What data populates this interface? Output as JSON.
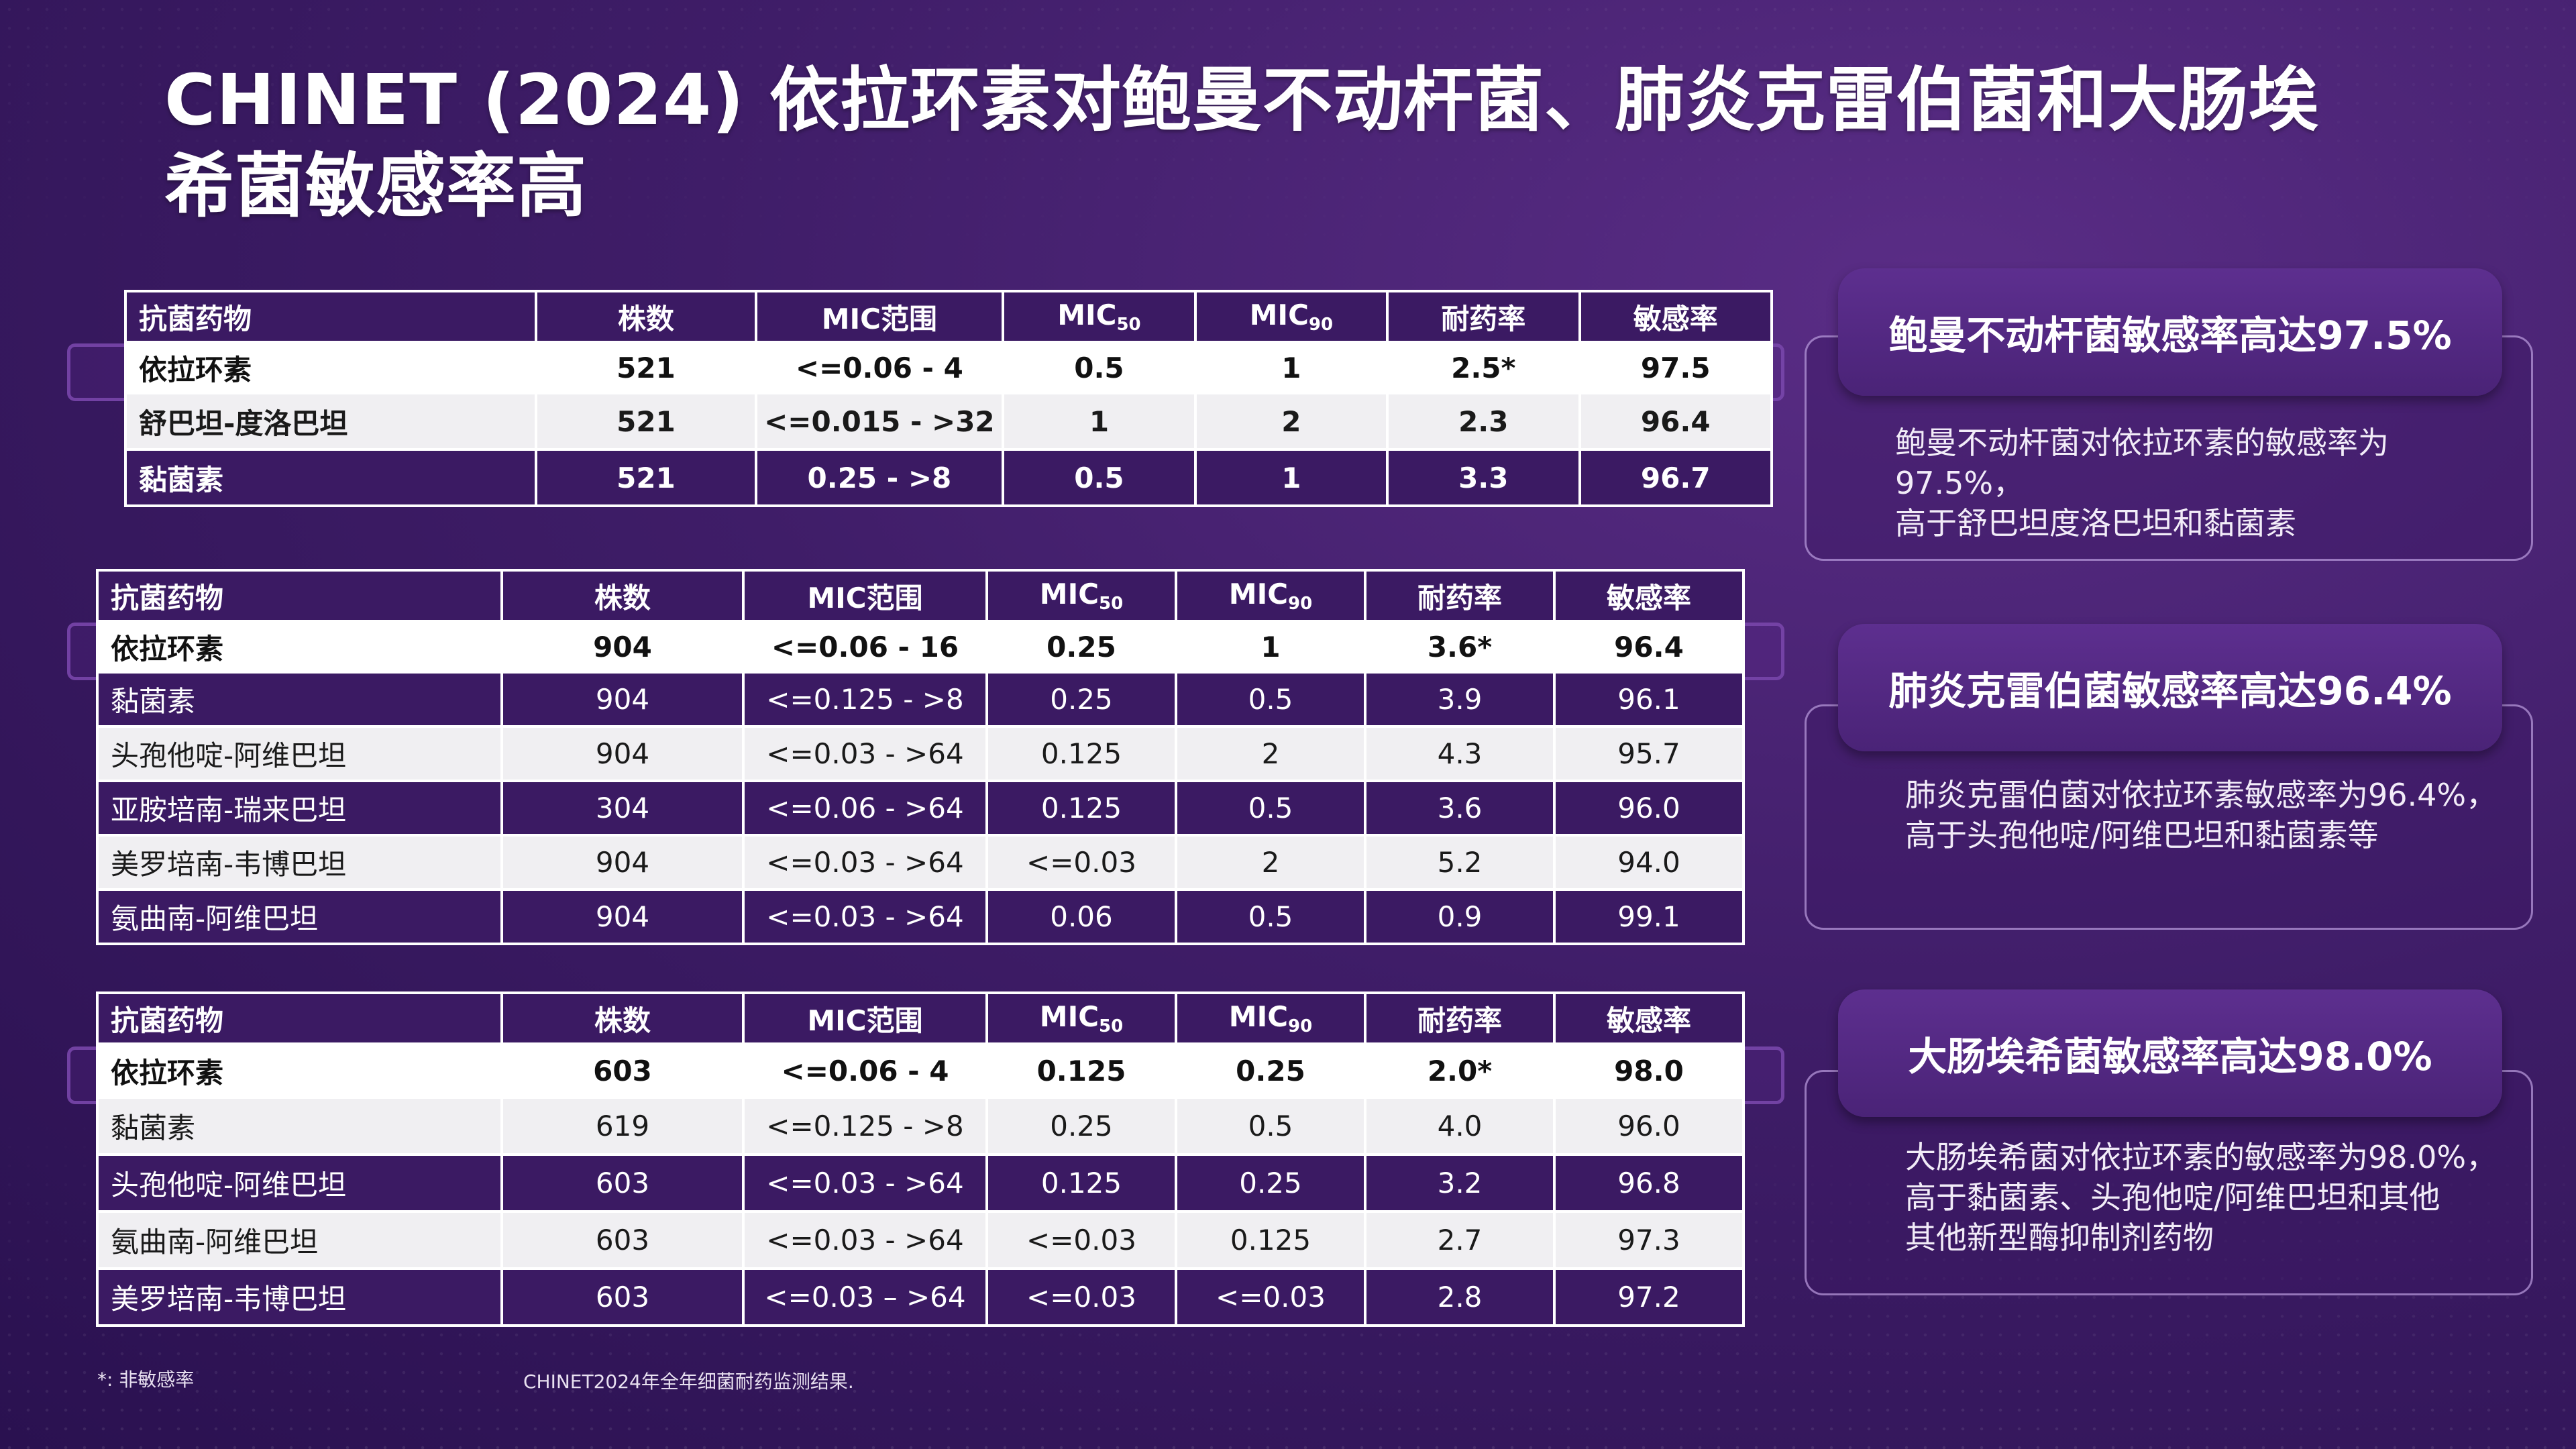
{
  "title_line1": "CHINET (2024) 依拉环素对鲍曼不动杆菌、肺炎克雷伯菌和大肠埃",
  "title_line2": "希菌敏感率高",
  "headers": {
    "drug": "抗菌药物",
    "count": "株数",
    "mic_range": "MIC范围",
    "mic50": "MIC",
    "mic50_sub": "50",
    "mic90": "MIC",
    "mic90_sub": "90",
    "resistance": "耐药率",
    "susceptibility": "敏感率"
  },
  "table1": {
    "rows": [
      [
        "依拉环素",
        "521",
        "<=0.06 - 4",
        "0.5",
        "1",
        "2.5*",
        "97.5"
      ],
      [
        "舒巴坦-度洛巴坦",
        "521",
        "<=0.015 - >32",
        "1",
        "2",
        "2.3",
        "96.4"
      ],
      [
        "黏菌素",
        "521",
        "0.25 - >8",
        "0.5",
        "1",
        "3.3",
        "96.7"
      ]
    ]
  },
  "table2": {
    "rows": [
      [
        "依拉环素",
        "904",
        "<=0.06 - 16",
        "0.25",
        "1",
        "3.6*",
        "96.4"
      ],
      [
        "黏菌素",
        "904",
        "<=0.125 - >8",
        "0.25",
        "0.5",
        "3.9",
        "96.1"
      ],
      [
        "头孢他啶-阿维巴坦",
        "904",
        "<=0.03 - >64",
        "0.125",
        "2",
        "4.3",
        "95.7"
      ],
      [
        "亚胺培南-瑞来巴坦",
        "304",
        "<=0.06 - >64",
        "0.125",
        "0.5",
        "3.6",
        "96.0"
      ],
      [
        "美罗培南-韦博巴坦",
        "904",
        "<=0.03 - >64",
        "<=0.03",
        "2",
        "5.2",
        "94.0"
      ],
      [
        "氨曲南-阿维巴坦",
        "904",
        "<=0.03 - >64",
        "0.06",
        "0.5",
        "0.9",
        "99.1"
      ]
    ]
  },
  "table3": {
    "rows": [
      [
        "依拉环素",
        "603",
        "<=0.06 - 4",
        "0.125",
        "0.25",
        "2.0*",
        "98.0"
      ],
      [
        "黏菌素",
        "619",
        "<=0.125 - >8",
        "0.25",
        "0.5",
        "4.0",
        "96.0"
      ],
      [
        "头孢他啶-阿维巴坦",
        "603",
        "<=0.03 - >64",
        "0.125",
        "0.25",
        "3.2",
        "96.8"
      ],
      [
        "氨曲南-阿维巴坦",
        "603",
        "<=0.03 - >64",
        "<=0.03",
        "0.125",
        "2.7",
        "97.3"
      ],
      [
        "美罗培南-韦博巴坦",
        "603",
        "<=0.03 – >64",
        "<=0.03",
        "<=0.03",
        "2.8",
        "97.2"
      ]
    ]
  },
  "cards": [
    {
      "head": "鲍曼不动杆菌敏感率高达97.5%",
      "lines": [
        "鲍曼不动杆菌对依拉环素的敏感率为97.5%，",
        "高于舒巴坦度洛巴坦和黏菌素"
      ]
    },
    {
      "head": "肺炎克雷伯菌敏感率高达96.4%",
      "lines": [
        "肺炎克雷伯菌对依拉环素敏感率为96.4%，",
        "高于头孢他啶/阿维巴坦和黏菌素等"
      ]
    },
    {
      "head": "大肠埃希菌敏感率高达98.0%",
      "lines": [
        "大肠埃希菌对依拉环素的敏感率为98.0%，",
        "高于黏菌素、头孢他啶/阿维巴坦和其他",
        "其他新型酶抑制剂药物"
      ]
    }
  ],
  "footnote_left": "*: 非敏感率",
  "footnote_right": "CHINET2024年全年细菌耐药监测结果."
}
